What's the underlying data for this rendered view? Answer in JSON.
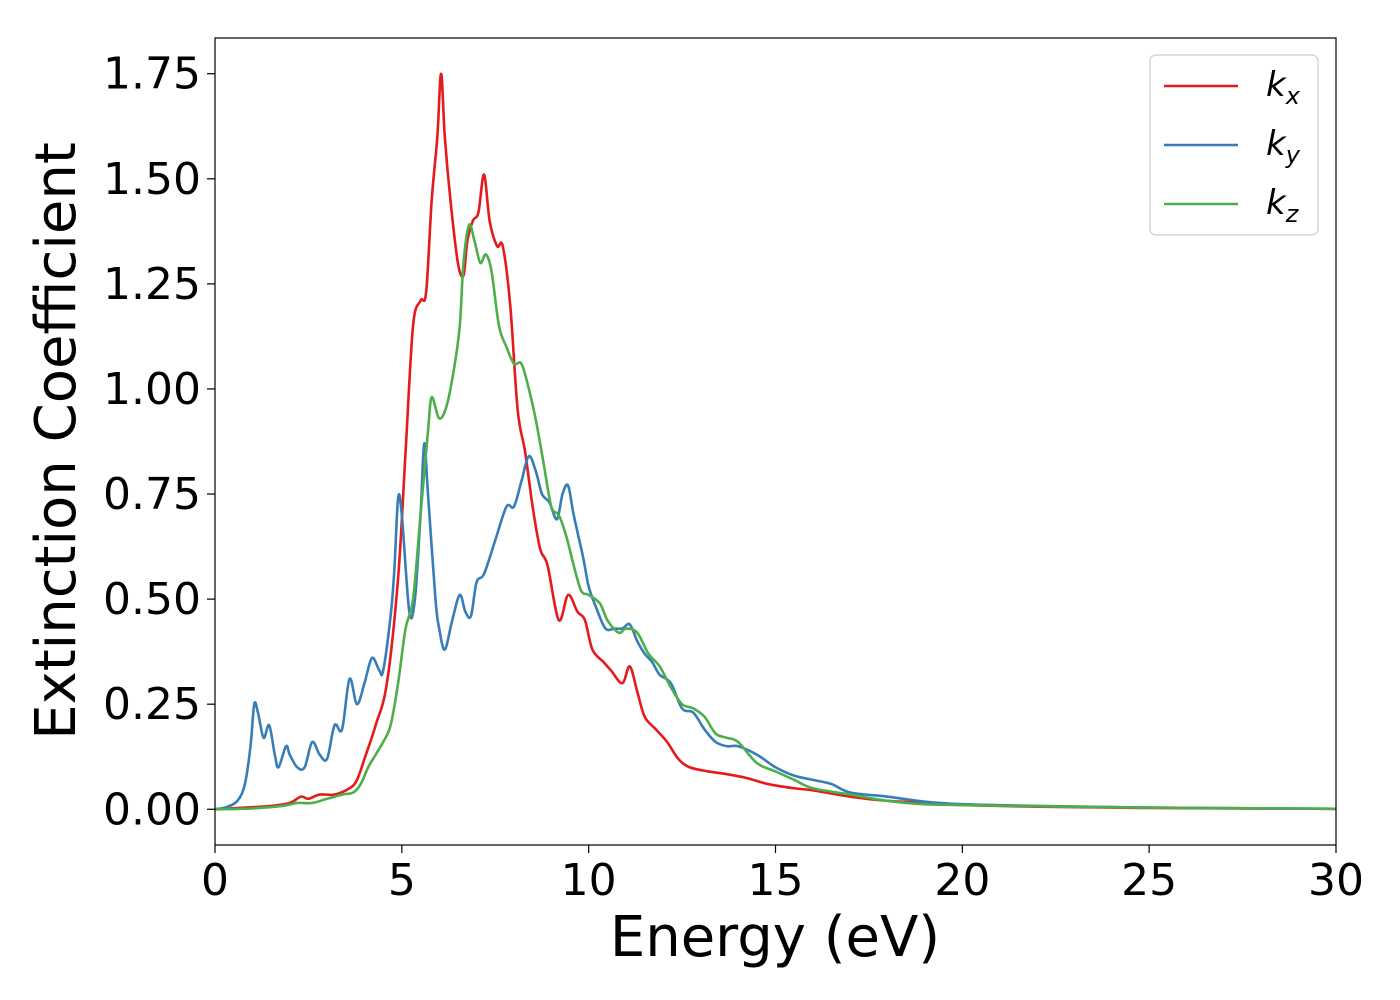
{
  "chart_data": {
    "type": "line",
    "xlabel": "Energy (eV)",
    "ylabel": "Extinction Coefficient",
    "xlim": [
      0,
      30
    ],
    "ylim": [
      -0.085,
      1.835
    ],
    "xticks": [
      0,
      5,
      10,
      15,
      20,
      25,
      30
    ],
    "xtick_labels": [
      "0",
      "5",
      "10",
      "15",
      "20",
      "25",
      "30"
    ],
    "yticks": [
      0,
      0.25,
      0.5,
      0.75,
      1.0,
      1.25,
      1.5,
      1.75
    ],
    "ytick_labels": [
      "0.00",
      "0.25",
      "0.50",
      "0.75",
      "1.00",
      "1.25",
      "1.50",
      "1.75"
    ],
    "grid": false,
    "legend_position": "top-right",
    "series": [
      {
        "name": "k",
        "subscript": "x",
        "color": "#e41a1c",
        "points": [
          [
            0,
            0
          ],
          [
            1,
            0.005
          ],
          [
            1.5,
            0.008
          ],
          [
            2,
            0.015
          ],
          [
            2.3,
            0.03
          ],
          [
            2.5,
            0.025
          ],
          [
            2.8,
            0.035
          ],
          [
            3.2,
            0.035
          ],
          [
            3.6,
            0.05
          ],
          [
            3.8,
            0.07
          ],
          [
            4.0,
            0.12
          ],
          [
            4.3,
            0.2
          ],
          [
            4.6,
            0.3
          ],
          [
            4.9,
            0.55
          ],
          [
            5.1,
            0.85
          ],
          [
            5.3,
            1.15
          ],
          [
            5.5,
            1.21
          ],
          [
            5.65,
            1.23
          ],
          [
            5.8,
            1.45
          ],
          [
            5.95,
            1.6
          ],
          [
            6.05,
            1.75
          ],
          [
            6.15,
            1.6
          ],
          [
            6.3,
            1.45
          ],
          [
            6.5,
            1.3
          ],
          [
            6.65,
            1.27
          ],
          [
            6.75,
            1.35
          ],
          [
            6.9,
            1.4
          ],
          [
            7.05,
            1.42
          ],
          [
            7.2,
            1.51
          ],
          [
            7.35,
            1.4
          ],
          [
            7.55,
            1.34
          ],
          [
            7.7,
            1.34
          ],
          [
            7.9,
            1.2
          ],
          [
            8.1,
            0.95
          ],
          [
            8.3,
            0.85
          ],
          [
            8.5,
            0.72
          ],
          [
            8.7,
            0.62
          ],
          [
            8.9,
            0.58
          ],
          [
            9.2,
            0.45
          ],
          [
            9.45,
            0.51
          ],
          [
            9.7,
            0.47
          ],
          [
            9.9,
            0.45
          ],
          [
            10.1,
            0.38
          ],
          [
            10.4,
            0.35
          ],
          [
            10.6,
            0.33
          ],
          [
            10.9,
            0.3
          ],
          [
            11.1,
            0.34
          ],
          [
            11.3,
            0.28
          ],
          [
            11.5,
            0.22
          ],
          [
            11.8,
            0.19
          ],
          [
            12.1,
            0.16
          ],
          [
            12.4,
            0.12
          ],
          [
            12.7,
            0.1
          ],
          [
            13.2,
            0.09
          ],
          [
            13.6,
            0.085
          ],
          [
            14.2,
            0.075
          ],
          [
            14.8,
            0.06
          ],
          [
            15.5,
            0.05
          ],
          [
            16,
            0.045
          ],
          [
            17,
            0.03
          ],
          [
            18,
            0.02
          ],
          [
            19,
            0.015
          ],
          [
            20,
            0.01
          ],
          [
            22,
            0.006
          ],
          [
            25,
            0.003
          ],
          [
            30,
            0.001
          ]
        ]
      },
      {
        "name": "k",
        "subscript": "y",
        "color": "#377eb8",
        "points": [
          [
            0,
            0
          ],
          [
            0.3,
            0.005
          ],
          [
            0.6,
            0.02
          ],
          [
            0.8,
            0.06
          ],
          [
            0.95,
            0.15
          ],
          [
            1.05,
            0.25
          ],
          [
            1.15,
            0.23
          ],
          [
            1.3,
            0.17
          ],
          [
            1.45,
            0.2
          ],
          [
            1.6,
            0.13
          ],
          [
            1.7,
            0.1
          ],
          [
            1.9,
            0.15
          ],
          [
            2.0,
            0.13
          ],
          [
            2.2,
            0.1
          ],
          [
            2.4,
            0.1
          ],
          [
            2.6,
            0.16
          ],
          [
            2.8,
            0.13
          ],
          [
            3.0,
            0.12
          ],
          [
            3.2,
            0.2
          ],
          [
            3.4,
            0.19
          ],
          [
            3.6,
            0.31
          ],
          [
            3.8,
            0.25
          ],
          [
            4.0,
            0.3
          ],
          [
            4.2,
            0.36
          ],
          [
            4.4,
            0.33
          ],
          [
            4.5,
            0.33
          ],
          [
            4.7,
            0.46
          ],
          [
            4.8,
            0.57
          ],
          [
            4.9,
            0.74
          ],
          [
            5.0,
            0.7
          ],
          [
            5.2,
            0.47
          ],
          [
            5.35,
            0.5
          ],
          [
            5.5,
            0.7
          ],
          [
            5.6,
            0.87
          ],
          [
            5.7,
            0.75
          ],
          [
            5.9,
            0.5
          ],
          [
            6.0,
            0.43
          ],
          [
            6.15,
            0.38
          ],
          [
            6.35,
            0.45
          ],
          [
            6.55,
            0.51
          ],
          [
            6.7,
            0.47
          ],
          [
            6.85,
            0.46
          ],
          [
            7.0,
            0.54
          ],
          [
            7.2,
            0.56
          ],
          [
            7.5,
            0.64
          ],
          [
            7.8,
            0.72
          ],
          [
            8.0,
            0.72
          ],
          [
            8.2,
            0.78
          ],
          [
            8.4,
            0.84
          ],
          [
            8.6,
            0.8
          ],
          [
            8.75,
            0.75
          ],
          [
            8.95,
            0.73
          ],
          [
            9.15,
            0.69
          ],
          [
            9.3,
            0.75
          ],
          [
            9.45,
            0.77
          ],
          [
            9.6,
            0.7
          ],
          [
            9.85,
            0.6
          ],
          [
            10.0,
            0.53
          ],
          [
            10.2,
            0.48
          ],
          [
            10.45,
            0.43
          ],
          [
            10.7,
            0.43
          ],
          [
            10.9,
            0.43
          ],
          [
            11.1,
            0.44
          ],
          [
            11.3,
            0.4
          ],
          [
            11.5,
            0.37
          ],
          [
            11.7,
            0.35
          ],
          [
            11.9,
            0.32
          ],
          [
            12.2,
            0.3
          ],
          [
            12.5,
            0.24
          ],
          [
            12.8,
            0.23
          ],
          [
            13.1,
            0.19
          ],
          [
            13.4,
            0.16
          ],
          [
            13.7,
            0.15
          ],
          [
            14,
            0.15
          ],
          [
            14.5,
            0.13
          ],
          [
            15,
            0.1
          ],
          [
            15.5,
            0.08
          ],
          [
            16,
            0.07
          ],
          [
            16.5,
            0.06
          ],
          [
            17,
            0.04
          ],
          [
            18,
            0.03
          ],
          [
            19,
            0.018
          ],
          [
            20,
            0.012
          ],
          [
            22,
            0.008
          ],
          [
            25,
            0.004
          ],
          [
            30,
            0.001
          ]
        ]
      },
      {
        "name": "k",
        "subscript": "z",
        "color": "#4daf4a",
        "points": [
          [
            0,
            0
          ],
          [
            1,
            0.002
          ],
          [
            1.8,
            0.008
          ],
          [
            2.2,
            0.015
          ],
          [
            2.6,
            0.015
          ],
          [
            3,
            0.025
          ],
          [
            3.4,
            0.035
          ],
          [
            3.7,
            0.04
          ],
          [
            3.9,
            0.06
          ],
          [
            4.1,
            0.1
          ],
          [
            4.3,
            0.13
          ],
          [
            4.5,
            0.16
          ],
          [
            4.7,
            0.2
          ],
          [
            4.9,
            0.3
          ],
          [
            5.1,
            0.43
          ],
          [
            5.3,
            0.5
          ],
          [
            5.5,
            0.7
          ],
          [
            5.7,
            0.9
          ],
          [
            5.8,
            0.98
          ],
          [
            6.0,
            0.93
          ],
          [
            6.2,
            0.96
          ],
          [
            6.4,
            1.05
          ],
          [
            6.55,
            1.15
          ],
          [
            6.65,
            1.3
          ],
          [
            6.8,
            1.39
          ],
          [
            6.95,
            1.35
          ],
          [
            7.1,
            1.3
          ],
          [
            7.25,
            1.32
          ],
          [
            7.4,
            1.28
          ],
          [
            7.6,
            1.15
          ],
          [
            7.8,
            1.1
          ],
          [
            8.0,
            1.06
          ],
          [
            8.2,
            1.06
          ],
          [
            8.4,
            1.0
          ],
          [
            8.6,
            0.92
          ],
          [
            8.8,
            0.82
          ],
          [
            9.0,
            0.72
          ],
          [
            9.2,
            0.7
          ],
          [
            9.4,
            0.65
          ],
          [
            9.6,
            0.58
          ],
          [
            9.8,
            0.52
          ],
          [
            10.0,
            0.51
          ],
          [
            10.3,
            0.49
          ],
          [
            10.5,
            0.45
          ],
          [
            10.8,
            0.42
          ],
          [
            11.0,
            0.43
          ],
          [
            11.3,
            0.42
          ],
          [
            11.6,
            0.37
          ],
          [
            11.9,
            0.34
          ],
          [
            12.2,
            0.29
          ],
          [
            12.5,
            0.25
          ],
          [
            12.8,
            0.24
          ],
          [
            13.1,
            0.22
          ],
          [
            13.4,
            0.18
          ],
          [
            13.7,
            0.17
          ],
          [
            14,
            0.16
          ],
          [
            14.5,
            0.11
          ],
          [
            15,
            0.09
          ],
          [
            15.5,
            0.07
          ],
          [
            16,
            0.05
          ],
          [
            17,
            0.035
          ],
          [
            18,
            0.02
          ],
          [
            19,
            0.012
          ],
          [
            20,
            0.01
          ],
          [
            22,
            0.007
          ],
          [
            25,
            0.004
          ],
          [
            30,
            0.001
          ]
        ]
      }
    ]
  }
}
